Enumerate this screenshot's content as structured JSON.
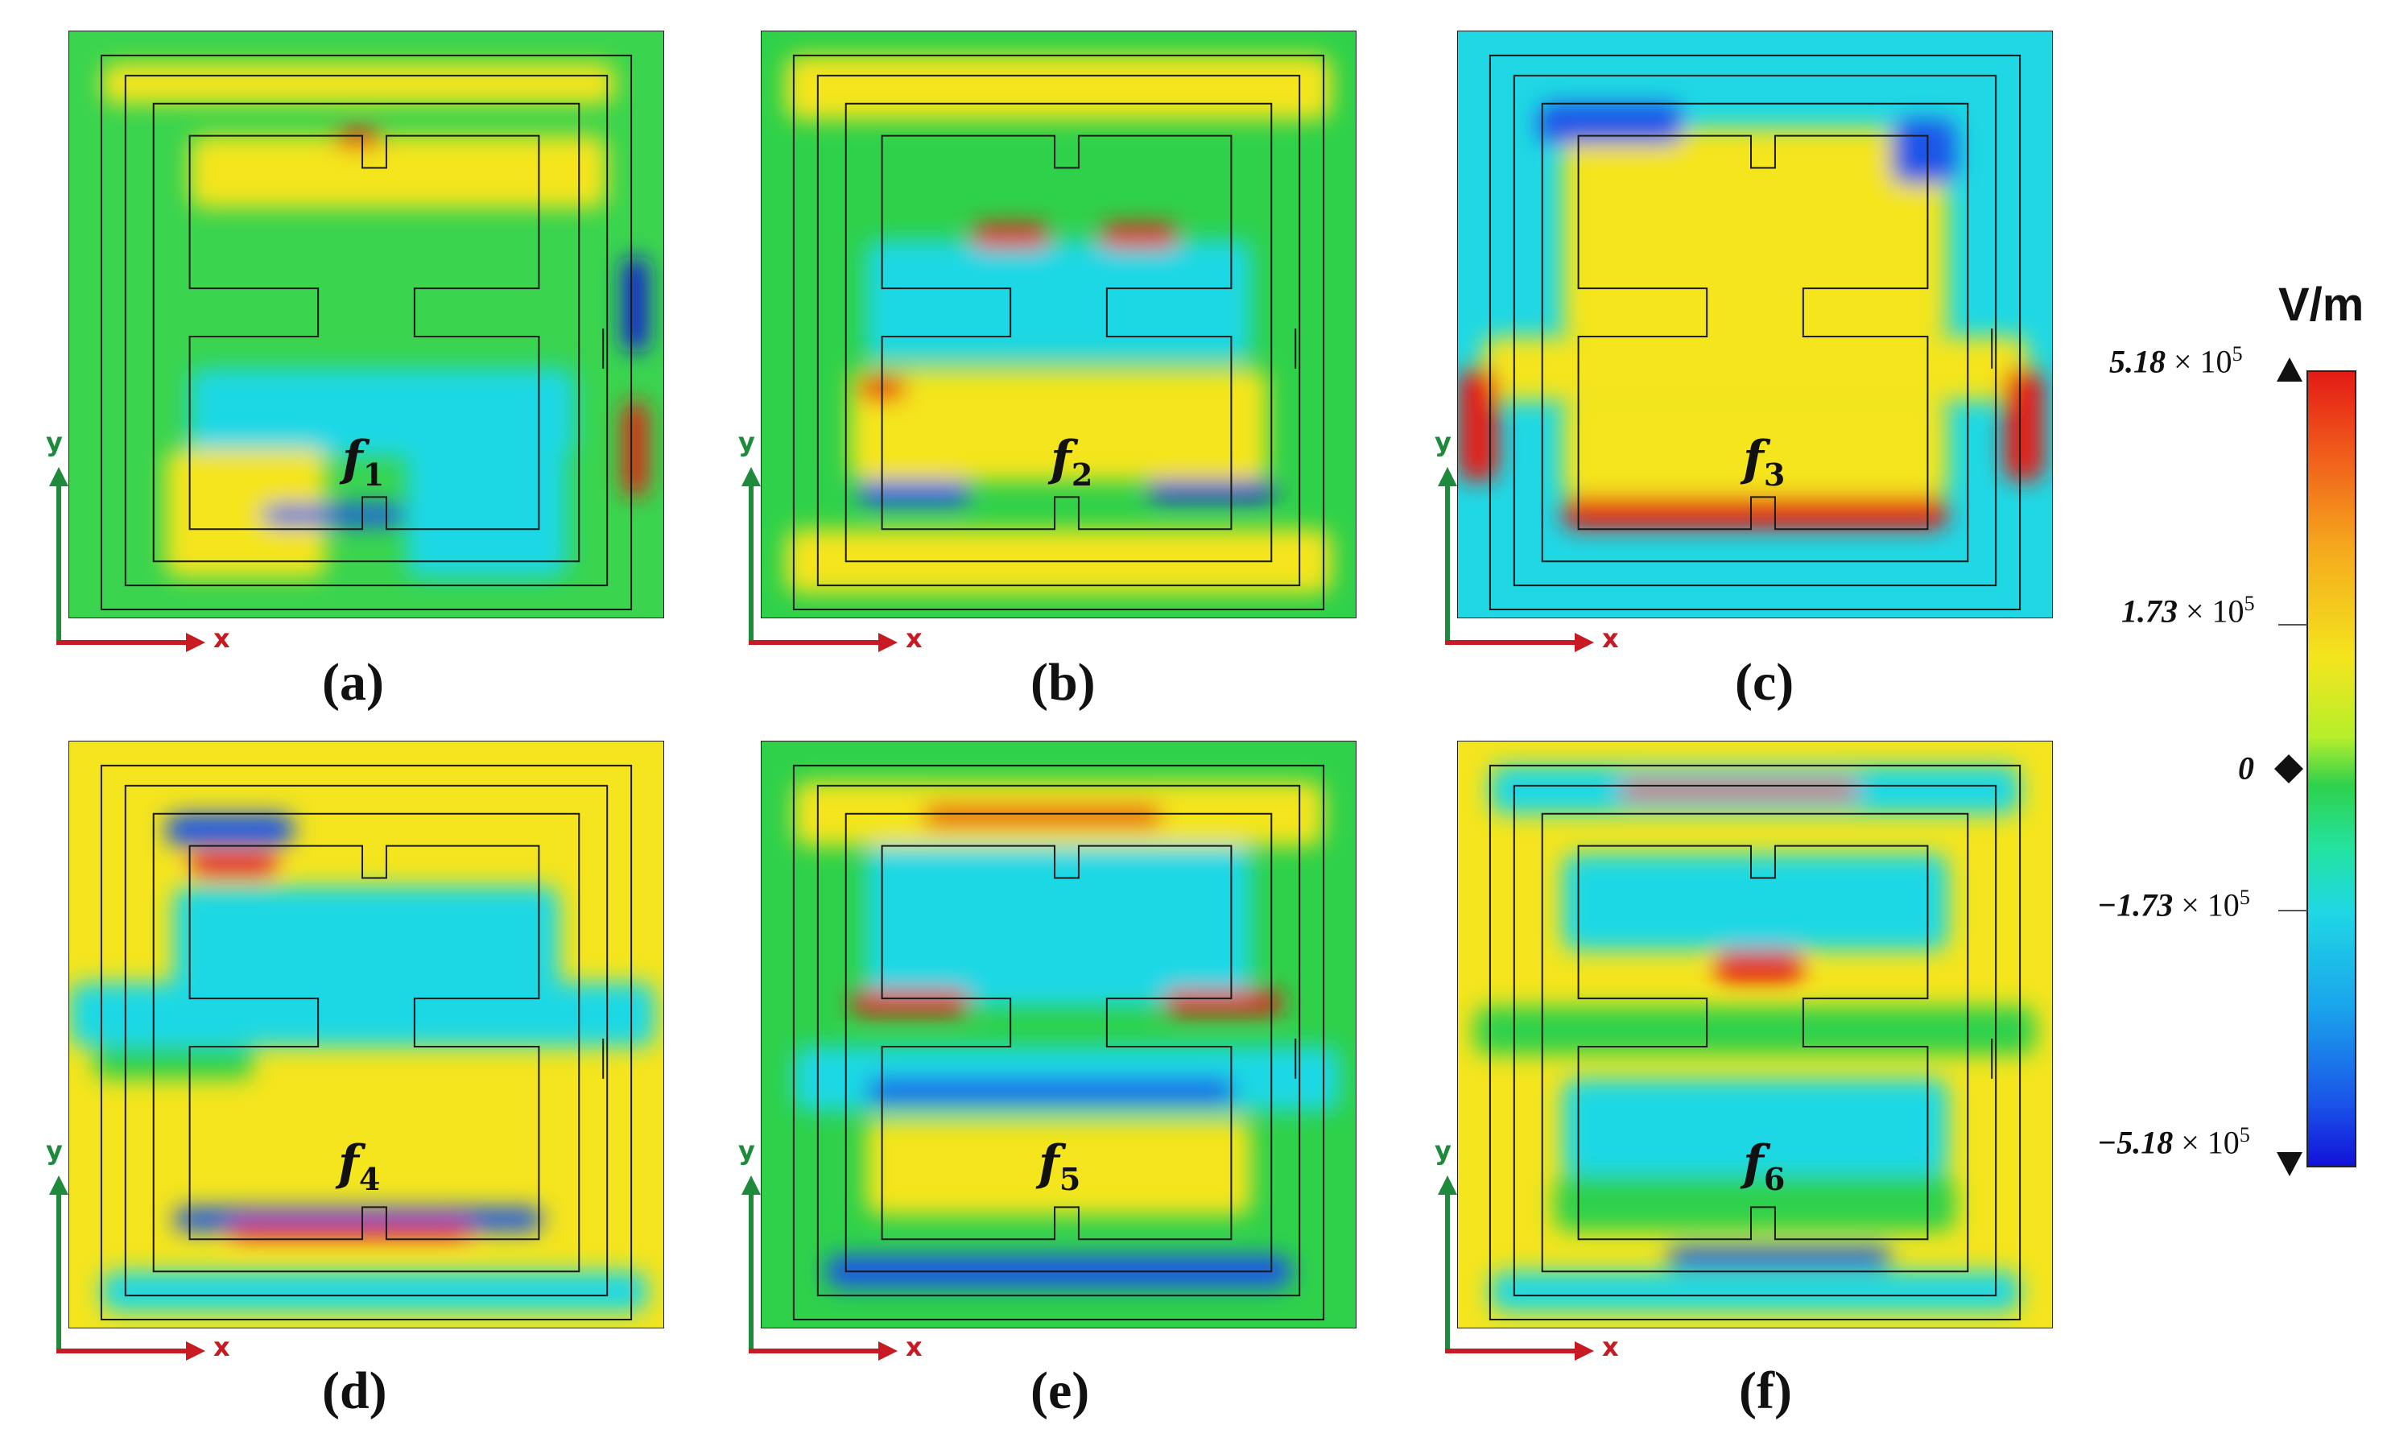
{
  "panels": [
    {
      "caption": "(a)",
      "freq_label": "f",
      "freq_sub": "1"
    },
    {
      "caption": "(b)",
      "freq_label": "f",
      "freq_sub": "2"
    },
    {
      "caption": "(c)",
      "freq_label": "f",
      "freq_sub": "3"
    },
    {
      "caption": "(d)",
      "freq_label": "f",
      "freq_sub": "4"
    },
    {
      "caption": "(e)",
      "freq_label": "f",
      "freq_sub": "5"
    },
    {
      "caption": "(f)",
      "freq_label": "f",
      "freq_sub": "6"
    }
  ],
  "axes": {
    "x_label": "x",
    "y_label": "y",
    "x_color": "#c81a22",
    "y_color": "#1f8a3c"
  },
  "colorbar": {
    "unit": "V/m",
    "ticks": [
      {
        "mantissa": "5.18",
        "times": " × 10",
        "exp": "5"
      },
      {
        "mantissa": "1.73",
        "times": " × 10",
        "exp": "5"
      },
      {
        "mantissa": "0",
        "times": "",
        "exp": ""
      },
      {
        "mantissa": "−1.73",
        "times": " × 10",
        "exp": "5"
      },
      {
        "mantissa": "−5.18",
        "times": " × 10",
        "exp": "5"
      }
    ],
    "colors": [
      "#e41b16",
      "#f4e51e",
      "#2fd14b",
      "#1fd8e4",
      "#1212d8"
    ]
  }
}
